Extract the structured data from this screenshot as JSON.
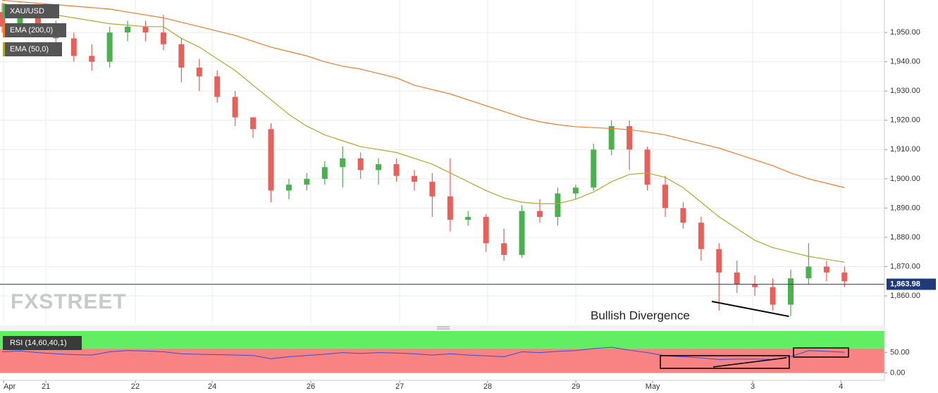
{
  "chart_data": [
    {
      "type": "candlestick",
      "name": "XAU/USD",
      "watermark": "FXSTREET",
      "x": [
        0,
        1,
        2,
        3,
        4,
        5,
        6,
        7,
        8,
        9,
        10,
        11,
        12,
        13,
        14,
        15,
        16,
        17,
        18,
        19,
        20,
        21,
        22,
        23,
        24,
        25,
        26,
        27,
        28,
        29,
        30,
        31,
        32,
        33,
        34,
        35,
        36,
        37,
        38,
        39,
        40,
        41,
        42,
        43,
        44,
        45,
        46,
        47
      ],
      "open": [
        1957,
        1952,
        1955,
        1951,
        1948,
        1942,
        1940,
        1950,
        1952,
        1950,
        1946,
        1938,
        1935,
        1928,
        1921,
        1917,
        1896,
        1898,
        1900,
        1904,
        1907,
        1903,
        1905,
        1901,
        1899,
        1894,
        1886,
        1887,
        1878,
        1874,
        1889,
        1887,
        1895,
        1897,
        1910,
        1918,
        1910,
        1898,
        1890,
        1885,
        1876,
        1868,
        1864,
        1863,
        1857,
        1866,
        1870,
        1868
      ],
      "high": [
        1960,
        1959,
        1958,
        1954,
        1950,
        1946,
        1952,
        1954,
        1954,
        1956,
        1948,
        1941,
        1937,
        1930,
        1921,
        1919,
        1900,
        1902,
        1906,
        1911,
        1909,
        1907,
        1907,
        1903,
        1902,
        1907,
        1889,
        1888,
        1883,
        1891,
        1893,
        1897,
        1898,
        1912,
        1920,
        1920,
        1911,
        1901,
        1892,
        1887,
        1878,
        1872,
        1867,
        1866,
        1869,
        1878,
        1872,
        1870
      ],
      "low": [
        1950,
        1949,
        1950,
        1945,
        1940,
        1937,
        1938,
        1947,
        1947,
        1944,
        1933,
        1930,
        1926,
        1918,
        1914,
        1892,
        1893,
        1896,
        1898,
        1897,
        1900,
        1898,
        1899,
        1896,
        1887,
        1882,
        1884,
        1875,
        1872,
        1873,
        1885,
        1884,
        1893,
        1896,
        1908,
        1903,
        1896,
        1887,
        1883,
        1872,
        1855,
        1861,
        1860,
        1855,
        1853,
        1864,
        1865,
        1863
      ],
      "close": [
        1952,
        1955,
        1951,
        1948,
        1942,
        1940,
        1950,
        1952,
        1950,
        1946,
        1938,
        1935,
        1928,
        1921,
        1917,
        1896,
        1898,
        1900,
        1904,
        1907,
        1903,
        1905,
        1901,
        1899,
        1894,
        1886,
        1887,
        1878,
        1874,
        1889,
        1887,
        1895,
        1897,
        1910,
        1918,
        1910,
        1898,
        1890,
        1885,
        1876,
        1868,
        1864,
        1863,
        1857,
        1866,
        1870,
        1868,
        1865
      ],
      "up_color": "#4caf50",
      "down_color": "#e8605a",
      "series": [
        {
          "name": "EMA (200,0)",
          "color": "#f07b28",
          "values": [
            1961,
            1960.5,
            1960,
            1959.5,
            1959,
            1958.5,
            1958,
            1957,
            1956,
            1955,
            1953.5,
            1952,
            1950.5,
            1949,
            1947,
            1945,
            1943.5,
            1942,
            1940,
            1938.5,
            1937.5,
            1936,
            1934.5,
            1932,
            1930.5,
            1929,
            1927,
            1925,
            1923,
            1921,
            1919.5,
            1918.5,
            1917.8,
            1917.5,
            1917.2,
            1916.8,
            1916,
            1915,
            1913.5,
            1912,
            1910.5,
            1908.5,
            1906.5,
            1904.5,
            1902,
            1900,
            1898.5,
            1897
          ]
        },
        {
          "name": "EMA (50,0)",
          "color": "#b3a82a",
          "values": [
            1960,
            1958.5,
            1957,
            1956,
            1955,
            1954,
            1953,
            1952.5,
            1952,
            1952,
            1948,
            1945,
            1941,
            1937,
            1932,
            1927,
            1922,
            1918,
            1915,
            1913,
            1911,
            1910,
            1909,
            1907,
            1905,
            1902,
            1899,
            1896,
            1893.5,
            1892,
            1891.5,
            1891.5,
            1893,
            1895.5,
            1899,
            1901.5,
            1902,
            1900.5,
            1897,
            1892,
            1887,
            1883,
            1879,
            1876.5,
            1875,
            1873.5,
            1872.5,
            1871.5
          ]
        }
      ],
      "current_price": {
        "value": 1863.98,
        "label": "1,863.98"
      },
      "annotation": "Bullish Divergence",
      "annotation_line": {
        "x": [
          39.6,
          43.9
        ],
        "y": [
          1858.1,
          1853
        ]
      },
      "xlim": [
        -0.12,
        49.23
      ],
      "xticks": [
        {
          "value": 0.08,
          "label": "Apr"
        },
        {
          "value": 2.44,
          "label": "21"
        },
        {
          "value": 7.43,
          "label": "22"
        },
        {
          "value": 11.72,
          "label": "24"
        },
        {
          "value": 17.22,
          "label": "26"
        },
        {
          "value": 22.18,
          "label": "27"
        },
        {
          "value": 27.09,
          "label": "28"
        },
        {
          "value": 32.01,
          "label": "29"
        },
        {
          "value": 36.3,
          "label": "May"
        },
        {
          "value": 41.88,
          "label": "3"
        },
        {
          "value": 46.8,
          "label": "4"
        }
      ],
      "ylim": [
        1850.4,
        1961.1
      ],
      "yticks": [
        {
          "value": 1860,
          "label": "1,860.00"
        },
        {
          "value": 1870,
          "label": "1,870.00"
        },
        {
          "value": 1880,
          "label": "1,880.00"
        },
        {
          "value": 1890,
          "label": "1,890.00"
        },
        {
          "value": 1900,
          "label": "1,900.00"
        },
        {
          "value": 1910,
          "label": "1,910.00"
        },
        {
          "value": 1920,
          "label": "1,920.00"
        },
        {
          "value": 1930,
          "label": "1,930.00"
        },
        {
          "value": 1940,
          "label": "1,940.00"
        },
        {
          "value": 1950,
          "label": "1,950.00"
        }
      ]
    },
    {
      "type": "line",
      "name": "RSI (14,60,40,1)",
      "color": "#3a4fd0",
      "values": [
        52,
        54,
        50,
        47,
        45,
        44,
        52,
        55,
        54,
        52,
        47,
        46,
        45,
        44,
        43,
        35,
        40,
        43,
        46,
        50,
        48,
        50,
        49,
        47,
        44,
        47,
        44,
        42,
        40,
        52,
        50,
        53,
        55,
        60,
        63,
        56,
        50,
        42,
        40,
        37,
        33,
        34,
        34,
        33,
        40,
        55,
        53,
        51
      ],
      "bands": [
        {
          "from": 60,
          "to": 103,
          "color": "#62ee62"
        },
        {
          "from": 0,
          "to": 60,
          "color": "#f98282"
        }
      ],
      "ylim": [
        -18,
        103
      ],
      "yticks": [
        {
          "value": 0,
          "label": "0.00"
        },
        {
          "value": 50,
          "label": "50.00"
        }
      ]
    }
  ]
}
